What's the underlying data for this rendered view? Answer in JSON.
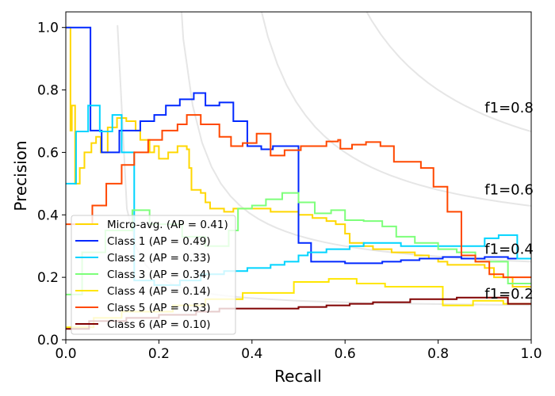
{
  "chart_data": {
    "type": "line",
    "title": "",
    "xlabel": "Recall",
    "ylabel": "Precision",
    "xlim": [
      0,
      1
    ],
    "ylim": [
      0,
      1.05
    ],
    "xticks": [
      "0.0",
      "0.2",
      "0.4",
      "0.6",
      "0.8",
      "1.0"
    ],
    "yticks": [
      "0.0",
      "0.2",
      "0.4",
      "0.6",
      "0.8",
      "1.0"
    ],
    "legend_position": "lower-left",
    "iso_f1": [
      {
        "f": 0.2,
        "label": "f1=0.2"
      },
      {
        "f": 0.4,
        "label": "f1=0.4"
      },
      {
        "f": 0.6,
        "label": "f1=0.6"
      },
      {
        "f": 0.8,
        "label": "f1=0.8"
      }
    ],
    "iso_color": "#e6e6e6",
    "series": [
      {
        "name": "Micro-avg. (AP = 0.41)",
        "color": "#ffd700",
        "points": [
          [
            0,
            1.0
          ],
          [
            0.01,
            0.67
          ],
          [
            0.013,
            0.75
          ],
          [
            0.02,
            0.5
          ],
          [
            0.03,
            0.55
          ],
          [
            0.04,
            0.6
          ],
          [
            0.055,
            0.63
          ],
          [
            0.065,
            0.65
          ],
          [
            0.075,
            0.6
          ],
          [
            0.09,
            0.68
          ],
          [
            0.11,
            0.71
          ],
          [
            0.13,
            0.7
          ],
          [
            0.15,
            0.67
          ],
          [
            0.16,
            0.64
          ],
          [
            0.18,
            0.6
          ],
          [
            0.19,
            0.62
          ],
          [
            0.2,
            0.58
          ],
          [
            0.22,
            0.6
          ],
          [
            0.24,
            0.62
          ],
          [
            0.26,
            0.61
          ],
          [
            0.265,
            0.55
          ],
          [
            0.27,
            0.48
          ],
          [
            0.29,
            0.47
          ],
          [
            0.3,
            0.44
          ],
          [
            0.31,
            0.42
          ],
          [
            0.34,
            0.41
          ],
          [
            0.36,
            0.42
          ],
          [
            0.4,
            0.42
          ],
          [
            0.44,
            0.41
          ],
          [
            0.5,
            0.4
          ],
          [
            0.53,
            0.39
          ],
          [
            0.56,
            0.38
          ],
          [
            0.58,
            0.37
          ],
          [
            0.6,
            0.34
          ],
          [
            0.61,
            0.31
          ],
          [
            0.64,
            0.3
          ],
          [
            0.66,
            0.29
          ],
          [
            0.7,
            0.28
          ],
          [
            0.75,
            0.27
          ],
          [
            0.78,
            0.26
          ],
          [
            0.8,
            0.25
          ],
          [
            0.82,
            0.24
          ],
          [
            0.86,
            0.24
          ],
          [
            0.9,
            0.23
          ],
          [
            0.92,
            0.2
          ],
          [
            0.96,
            0.17
          ],
          [
            1.0,
            0.17
          ]
        ]
      },
      {
        "name": "Class 1 (AP = 0.49)",
        "color": "#0028ff",
        "points": [
          [
            0,
            1.0
          ],
          [
            0.053,
            0.67
          ],
          [
            0.077,
            0.6
          ],
          [
            0.115,
            0.67
          ],
          [
            0.16,
            0.7
          ],
          [
            0.19,
            0.72
          ],
          [
            0.215,
            0.75
          ],
          [
            0.245,
            0.77
          ],
          [
            0.275,
            0.79
          ],
          [
            0.3,
            0.75
          ],
          [
            0.33,
            0.76
          ],
          [
            0.36,
            0.7
          ],
          [
            0.39,
            0.68
          ],
          [
            0.39,
            0.62
          ],
          [
            0.42,
            0.61
          ],
          [
            0.445,
            0.62
          ],
          [
            0.475,
            0.62
          ],
          [
            0.5,
            0.31
          ],
          [
            0.527,
            0.25
          ],
          [
            0.6,
            0.245
          ],
          [
            0.64,
            0.245
          ],
          [
            0.68,
            0.25
          ],
          [
            0.72,
            0.255
          ],
          [
            0.76,
            0.26
          ],
          [
            0.81,
            0.265
          ],
          [
            0.85,
            0.26
          ],
          [
            0.9,
            0.265
          ],
          [
            0.95,
            0.26
          ],
          [
            1.0,
            0.26
          ]
        ]
      },
      {
        "name": "Class 2 (AP = 0.33)",
        "color": "#00d4ff",
        "points": [
          [
            0,
            0.5
          ],
          [
            0.022,
            0.667
          ],
          [
            0.048,
            0.75
          ],
          [
            0.073,
            0.667
          ],
          [
            0.1,
            0.72
          ],
          [
            0.12,
            0.6
          ],
          [
            0.147,
            0.19
          ],
          [
            0.19,
            0.175
          ],
          [
            0.245,
            0.19
          ],
          [
            0.29,
            0.21
          ],
          [
            0.34,
            0.22
          ],
          [
            0.39,
            0.23
          ],
          [
            0.44,
            0.24
          ],
          [
            0.47,
            0.25
          ],
          [
            0.5,
            0.27
          ],
          [
            0.52,
            0.28
          ],
          [
            0.56,
            0.29
          ],
          [
            0.61,
            0.3
          ],
          [
            0.64,
            0.31
          ],
          [
            0.68,
            0.31
          ],
          [
            0.72,
            0.3
          ],
          [
            0.9,
            0.325
          ],
          [
            0.93,
            0.335
          ],
          [
            0.97,
            0.26
          ],
          [
            1.0,
            0.26
          ]
        ]
      },
      {
        "name": "Class 3 (AP = 0.34)",
        "color": "#7dff7a",
        "points": [
          [
            0,
            0.145
          ],
          [
            0.035,
            0.28
          ],
          [
            0.085,
            0.35
          ],
          [
            0.143,
            0.415
          ],
          [
            0.18,
            0.37
          ],
          [
            0.25,
            0.33
          ],
          [
            0.3,
            0.3
          ],
          [
            0.35,
            0.35
          ],
          [
            0.37,
            0.42
          ],
          [
            0.4,
            0.43
          ],
          [
            0.43,
            0.45
          ],
          [
            0.465,
            0.47
          ],
          [
            0.5,
            0.44
          ],
          [
            0.535,
            0.405
          ],
          [
            0.57,
            0.415
          ],
          [
            0.6,
            0.383
          ],
          [
            0.64,
            0.38
          ],
          [
            0.68,
            0.363
          ],
          [
            0.71,
            0.33
          ],
          [
            0.75,
            0.31
          ],
          [
            0.8,
            0.29
          ],
          [
            0.84,
            0.28
          ],
          [
            0.88,
            0.25
          ],
          [
            0.95,
            0.18
          ],
          [
            1.0,
            0.18
          ]
        ]
      },
      {
        "name": "Class 4 (AP = 0.14)",
        "color": "#ffe600",
        "points": [
          [
            0,
            0.04
          ],
          [
            0.06,
            0.07
          ],
          [
            0.12,
            0.09
          ],
          [
            0.23,
            0.11
          ],
          [
            0.3,
            0.13
          ],
          [
            0.38,
            0.15
          ],
          [
            0.49,
            0.185
          ],
          [
            0.565,
            0.195
          ],
          [
            0.625,
            0.18
          ],
          [
            0.686,
            0.17
          ],
          [
            0.81,
            0.11
          ],
          [
            0.875,
            0.125
          ],
          [
            0.94,
            0.115
          ],
          [
            1.0,
            0.115
          ]
        ]
      },
      {
        "name": "Class 5 (AP = 0.53)",
        "color": "#ff4800",
        "points": [
          [
            0,
            0.37
          ],
          [
            0.057,
            0.43
          ],
          [
            0.087,
            0.5
          ],
          [
            0.12,
            0.56
          ],
          [
            0.147,
            0.6
          ],
          [
            0.177,
            0.64
          ],
          [
            0.207,
            0.67
          ],
          [
            0.24,
            0.69
          ],
          [
            0.26,
            0.72
          ],
          [
            0.29,
            0.69
          ],
          [
            0.33,
            0.65
          ],
          [
            0.355,
            0.62
          ],
          [
            0.38,
            0.63
          ],
          [
            0.41,
            0.66
          ],
          [
            0.44,
            0.59
          ],
          [
            0.47,
            0.607
          ],
          [
            0.505,
            0.62
          ],
          [
            0.56,
            0.635
          ],
          [
            0.585,
            0.64
          ],
          [
            0.59,
            0.612
          ],
          [
            0.615,
            0.625
          ],
          [
            0.645,
            0.633
          ],
          [
            0.676,
            0.62
          ],
          [
            0.705,
            0.57
          ],
          [
            0.763,
            0.55
          ],
          [
            0.79,
            0.49
          ],
          [
            0.82,
            0.41
          ],
          [
            0.85,
            0.27
          ],
          [
            0.88,
            0.25
          ],
          [
            0.91,
            0.21
          ],
          [
            0.94,
            0.2
          ],
          [
            1.0,
            0.2
          ]
        ]
      },
      {
        "name": "Class 6 (AP = 0.10)",
        "color": "#800000",
        "points": [
          [
            0,
            0.035
          ],
          [
            0.05,
            0.06
          ],
          [
            0.13,
            0.07
          ],
          [
            0.2,
            0.08
          ],
          [
            0.28,
            0.09
          ],
          [
            0.33,
            0.1
          ],
          [
            0.4,
            0.1
          ],
          [
            0.5,
            0.105
          ],
          [
            0.56,
            0.11
          ],
          [
            0.61,
            0.115
          ],
          [
            0.66,
            0.12
          ],
          [
            0.74,
            0.13
          ],
          [
            0.84,
            0.135
          ],
          [
            0.95,
            0.115
          ],
          [
            1.0,
            0.115
          ]
        ]
      }
    ]
  }
}
